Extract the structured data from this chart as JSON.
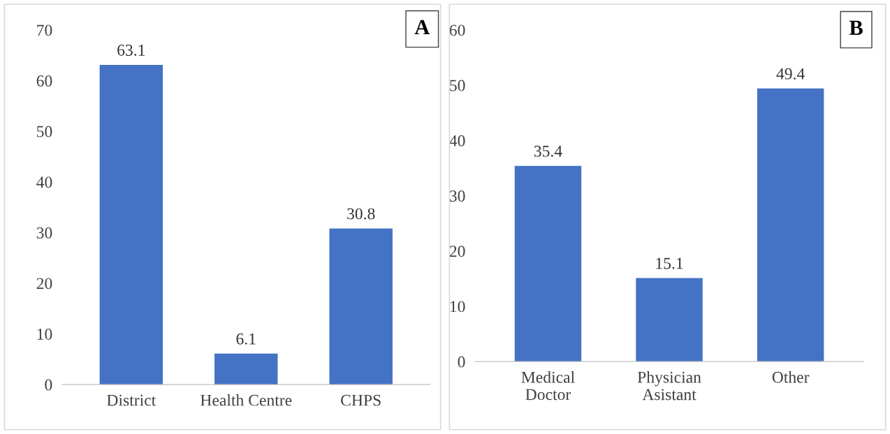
{
  "chart_data": [
    {
      "type": "bar",
      "categories": [
        "District",
        "Health Centre",
        "CHPS"
      ],
      "values": [
        63.1,
        6.1,
        30.8
      ],
      "color": "#4472c4",
      "ylim": [
        0,
        70
      ],
      "yticks": [
        0,
        10,
        20,
        30,
        40,
        50,
        60,
        70
      ],
      "data_labels": true,
      "annotations": [
        "A"
      ]
    },
    {
      "type": "bar",
      "categories": [
        "Medical\nDoctor",
        "Physician\nAsistant",
        "Other"
      ],
      "values": [
        35.4,
        15.1,
        49.4
      ],
      "color": "#4472c4",
      "ylim": [
        0,
        60
      ],
      "yticks": [
        0,
        10,
        20,
        30,
        40,
        50,
        60
      ],
      "data_labels": true,
      "annotations": [
        "B"
      ]
    }
  ]
}
